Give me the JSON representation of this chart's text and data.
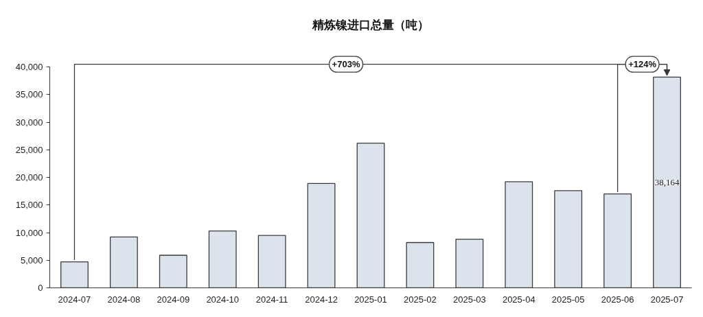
{
  "chart_data": {
    "type": "bar",
    "title": "精炼镍进口总量（吨）",
    "categories": [
      "2024-07",
      "2024-08",
      "2024-09",
      "2024-10",
      "2024-11",
      "2024-12",
      "2025-01",
      "2025-02",
      "2025-03",
      "2025-04",
      "2025-05",
      "2025-06",
      "2025-07"
    ],
    "values": [
      4700,
      9200,
      5900,
      10300,
      9500,
      18900,
      26200,
      8200,
      8800,
      19200,
      17600,
      17000,
      38164
    ],
    "value_labels": [
      null,
      null,
      null,
      null,
      null,
      null,
      null,
      null,
      null,
      null,
      null,
      null,
      "38,164"
    ],
    "color": "#dce3ed",
    "ylim": [
      0,
      40000
    ],
    "yticks": [
      0,
      {
        "value": 5000,
        "label": "5,000"
      },
      {
        "value": 10000,
        "label": "10,000"
      },
      {
        "value": 15000,
        "label": "15,000"
      },
      {
        "value": 20000,
        "label": "20,000"
      },
      {
        "value": 25000,
        "label": "25,000"
      },
      {
        "value": 30000,
        "label": "30,000"
      },
      {
        "value": 35000,
        "label": "35,000"
      },
      {
        "value": 40000,
        "label": "40,000"
      }
    ],
    "grid": false,
    "annotations": [
      {
        "text": "+703%",
        "x": "2024-07",
        "y": 4700
      },
      {
        "text": "+124%",
        "x": "2025-06",
        "y": 17000
      }
    ]
  }
}
